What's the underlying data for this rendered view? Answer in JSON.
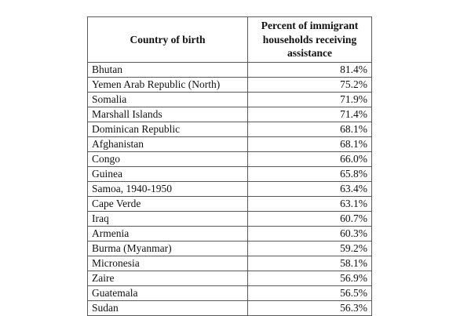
{
  "page": {
    "background_color": "#ffffff",
    "border_color": "#595959",
    "text_color": "#111111"
  },
  "table": {
    "header": {
      "country": "Country of birth",
      "percent": "Percent of immigrant households receiving assistance"
    },
    "rows": [
      {
        "country": "Bhutan",
        "percent": "81.4%"
      },
      {
        "country": "Yemen Arab Republic (North)",
        "percent": "75.2%"
      },
      {
        "country": "Somalia",
        "percent": "71.9%"
      },
      {
        "country": "Marshall Islands",
        "percent": "71.4%"
      },
      {
        "country": "Dominican Republic",
        "percent": "68.1%"
      },
      {
        "country": "Afghanistan",
        "percent": "68.1%"
      },
      {
        "country": "Congo",
        "percent": "66.0%"
      },
      {
        "country": "Guinea",
        "percent": "65.8%"
      },
      {
        "country": "Samoa, 1940-1950",
        "percent": "63.4%"
      },
      {
        "country": "Cape Verde",
        "percent": "63.1%"
      },
      {
        "country": "Iraq",
        "percent": "60.7%"
      },
      {
        "country": "Armenia",
        "percent": "60.3%"
      },
      {
        "country": "Burma (Myanmar)",
        "percent": "59.2%"
      },
      {
        "country": "Micronesia",
        "percent": "58.1%"
      },
      {
        "country": "Zaire",
        "percent": "56.9%"
      },
      {
        "country": "Guatemala",
        "percent": "56.5%"
      },
      {
        "country": "Sudan",
        "percent": "56.3%"
      }
    ]
  },
  "chart_data": {
    "type": "table",
    "title": "",
    "columns": [
      "Country of birth",
      "Percent of immigrant households receiving assistance"
    ],
    "categories": [
      "Bhutan",
      "Yemen Arab Republic (North)",
      "Somalia",
      "Marshall Islands",
      "Dominican Republic",
      "Afghanistan",
      "Congo",
      "Guinea",
      "Samoa, 1940-1950",
      "Cape Verde",
      "Iraq",
      "Armenia",
      "Burma (Myanmar)",
      "Micronesia",
      "Zaire",
      "Guatemala",
      "Sudan"
    ],
    "values": [
      81.4,
      75.2,
      71.9,
      71.4,
      68.1,
      68.1,
      66.0,
      65.8,
      63.4,
      63.1,
      60.7,
      60.3,
      59.2,
      58.1,
      56.9,
      56.5,
      56.3
    ]
  }
}
